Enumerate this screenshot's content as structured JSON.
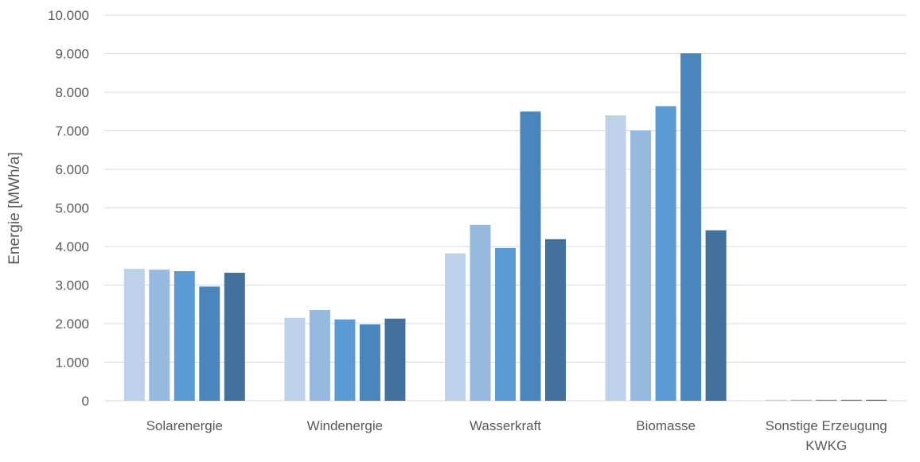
{
  "chart_data": {
    "type": "bar",
    "title": "",
    "xlabel": "",
    "ylabel": "Energie [MWh/a]",
    "ylim": [
      0,
      10000
    ],
    "yticks": [
      0,
      1000,
      2000,
      3000,
      4000,
      5000,
      6000,
      7000,
      8000,
      9000,
      10000
    ],
    "ytick_labels": [
      "0",
      "1.000",
      "2.000",
      "3.000",
      "4.000",
      "5.000",
      "6.000",
      "7.000",
      "8.000",
      "9.000",
      "10.000"
    ],
    "grid": true,
    "legend": "none",
    "categories": [
      [
        "Solarenergie"
      ],
      [
        "Windenergie"
      ],
      [
        "Wasserkraft"
      ],
      [
        "Biomasse"
      ],
      [
        "Sonstige Erzeugung",
        "KWKG"
      ]
    ],
    "series": [
      {
        "color": "#bdd1ea",
        "values": [
          3420,
          2150,
          3820,
          7400,
          15
        ]
      },
      {
        "color": "#97b9e0",
        "values": [
          3400,
          2350,
          4560,
          7010,
          15
        ]
      },
      {
        "color": "#5b9bd5",
        "values": [
          3360,
          2110,
          3960,
          7640,
          20
        ]
      },
      {
        "color": "#4a86bd",
        "values": [
          2960,
          1980,
          7500,
          9010,
          20
        ]
      },
      {
        "color": "#41719c",
        "values": [
          3320,
          2130,
          4190,
          4420,
          25
        ]
      }
    ]
  }
}
